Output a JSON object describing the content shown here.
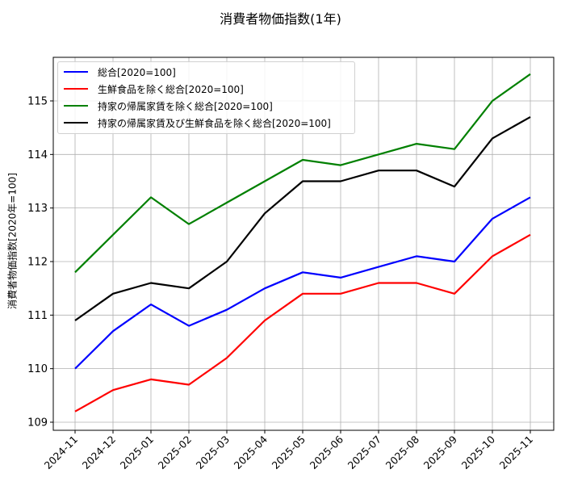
{
  "title": "消費者物価指数(1年)",
  "chart_data": {
    "type": "line",
    "title": "消費者物価指数(1年)",
    "xlabel": "",
    "ylabel": "消費者物価指数[2020年=100]",
    "x": [
      "2024-11",
      "2024-12",
      "2025-01",
      "2025-02",
      "2025-03",
      "2025-04",
      "2025-05",
      "2025-06",
      "2025-07",
      "2025-08",
      "2025-09",
      "2025-10",
      "2025-11"
    ],
    "yticks": [
      109,
      110,
      111,
      112,
      113,
      114,
      115
    ],
    "ylim": [
      108.9,
      115.8
    ],
    "grid": true,
    "legend_position": "upper left",
    "series": [
      {
        "name": "総合[2020=100]",
        "color": "#0000ff",
        "values": [
          110.0,
          110.7,
          111.2,
          110.8,
          111.1,
          111.5,
          111.8,
          111.7,
          111.9,
          112.1,
          112.0,
          112.8,
          113.2
        ]
      },
      {
        "name": "生鮮食品を除く総合[2020=100]",
        "color": "#ff0000",
        "values": [
          109.2,
          109.6,
          109.8,
          109.7,
          110.2,
          110.9,
          111.4,
          111.4,
          111.6,
          111.6,
          111.4,
          112.1,
          112.5
        ]
      },
      {
        "name": "持家の帰属家賃を除く総合[2020=100]",
        "color": "#008000",
        "values": [
          111.8,
          112.5,
          113.2,
          112.7,
          113.1,
          113.5,
          113.9,
          113.8,
          114.0,
          114.2,
          114.1,
          115.0,
          115.5
        ]
      },
      {
        "name": "持家の帰属家賃及び生鮮食品を除く総合[2020=100]",
        "color": "#000000",
        "values": [
          110.9,
          111.4,
          111.6,
          111.5,
          112.0,
          112.9,
          113.5,
          113.5,
          113.7,
          113.7,
          113.4,
          114.3,
          114.7
        ]
      }
    ]
  }
}
